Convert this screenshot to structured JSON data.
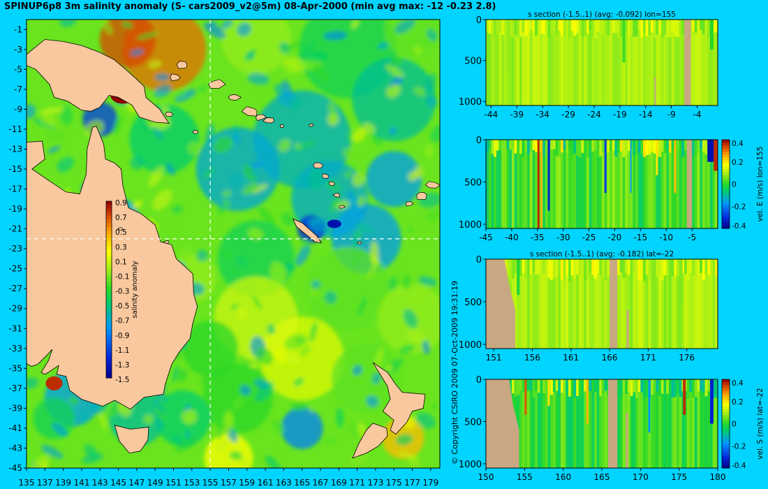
{
  "title": "SPINUP6p8 3m salinity anomaly (S- cars2009_v2@5m) 08-Apr-2000 (min avg max: -12 -0.23 2.8)",
  "copyright": "© Copyright CSIRO 2009   07-Oct-2009 19:31:19",
  "colors": {
    "background": "#00d4ff",
    "land": "#f9c89e",
    "section_land": "#c8a882",
    "crosshair": "#ffffff"
  },
  "chart_data": [
    {
      "id": "map",
      "type": "heatmap",
      "title": "SPINUP6p8 3m salinity anomaly (S- cars2009_v2@5m) 08-Apr-2000 (min avg max: -12 -0.23 2.8)",
      "x_ticks": [
        135,
        137,
        139,
        141,
        143,
        145,
        147,
        149,
        151,
        153,
        155,
        157,
        159,
        161,
        163,
        165,
        167,
        169,
        171,
        173,
        175,
        177,
        179
      ],
      "y_ticks": [
        -1,
        -3,
        -5,
        -7,
        -9,
        -11,
        -13,
        -15,
        -17,
        -19,
        -21,
        -23,
        -25,
        -27,
        -29,
        -31,
        -33,
        -35,
        -37,
        -39,
        -41,
        -43,
        -45
      ],
      "xlim": [
        135,
        180
      ],
      "ylim": [
        -45,
        0
      ],
      "crosshair": {
        "lon": 155,
        "lat": -22
      },
      "colorbar": {
        "label": "salinity anomaly",
        "ticks": [
          "0.9",
          "0.7",
          "0.5",
          "0.3",
          "0.1",
          "-0.1",
          "-0.3",
          "-0.5",
          "-0.7",
          "-0.9",
          "-1.1",
          "-1.3",
          "-1.5"
        ],
        "range": [
          -1.5,
          0.9
        ]
      },
      "summary": {
        "min": -12,
        "avg": -0.23,
        "max": 2.8
      }
    },
    {
      "id": "s-section-lon",
      "type": "heatmap",
      "title": "s section (-1.5..1) (avg: -0.092) lon=155",
      "x_ticks": [
        "-44",
        "-39",
        "-34",
        "-29",
        "-24",
        "-19",
        "-14",
        "-9",
        "-4"
      ],
      "y_ticks": [
        "0",
        "500",
        "1000"
      ],
      "xlim": [
        -45,
        0
      ],
      "ylim": [
        1050,
        0
      ]
    },
    {
      "id": "vel-e-section",
      "type": "heatmap",
      "title": "",
      "x_ticks": [
        "-45",
        "-40",
        "-35",
        "-30",
        "-25",
        "-20",
        "-15",
        "-10",
        "-5"
      ],
      "y_ticks": [
        "0",
        "500",
        "1000"
      ],
      "xlim": [
        -45,
        0
      ],
      "ylim": [
        1050,
        0
      ],
      "colorbar": {
        "label": "vel. E (m/s) lon=155",
        "ticks": [
          "0.4",
          "0.2",
          "0",
          "-0.2",
          "-0.4"
        ],
        "range": [
          -0.4,
          0.4
        ]
      }
    },
    {
      "id": "s-section-lat",
      "type": "heatmap",
      "title": "s section (-1.5..1) (avg: -0.182) lat=-22",
      "x_ticks": [
        "151",
        "156",
        "161",
        "166",
        "171",
        "176"
      ],
      "y_ticks": [
        "0",
        "500",
        "1000"
      ],
      "xlim": [
        150,
        180
      ],
      "ylim": [
        1050,
        0
      ]
    },
    {
      "id": "vel-s-section",
      "type": "heatmap",
      "title": "",
      "x_ticks": [
        "150",
        "155",
        "160",
        "165",
        "170",
        "175",
        "180"
      ],
      "y_ticks": [
        "0",
        "500",
        "1000"
      ],
      "xlim": [
        150,
        180
      ],
      "ylim": [
        1050,
        0
      ],
      "colorbar": {
        "label": "vel. S (m/s) lat=-22",
        "ticks": [
          "0.4",
          "0.2",
          "0",
          "-0.2",
          "-0.4"
        ],
        "range": [
          -0.4,
          0.4
        ]
      }
    }
  ]
}
